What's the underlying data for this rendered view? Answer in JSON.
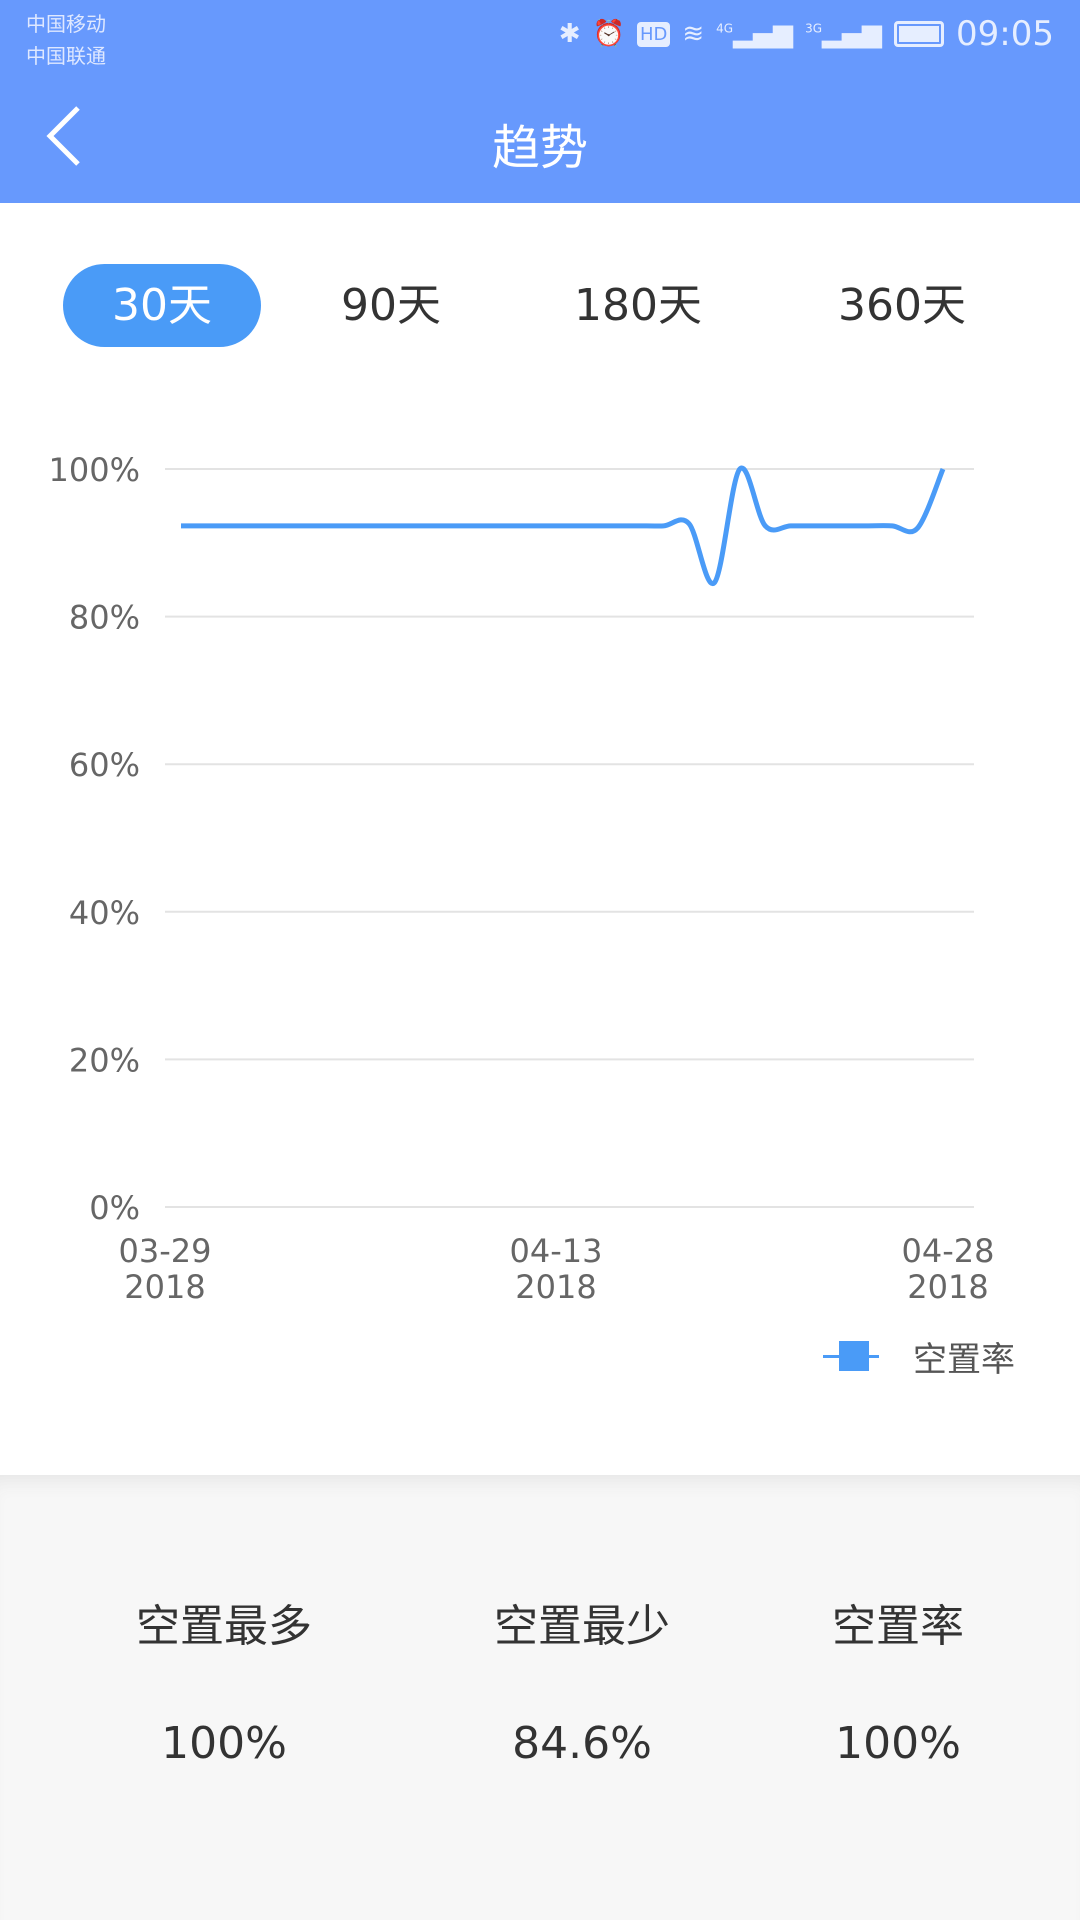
{
  "status_bar": {
    "carrier1": "中国移动",
    "carrier2": "中国联通",
    "network1": "4G",
    "network2": "3G",
    "hd": "HD",
    "time": "09:05"
  },
  "header": {
    "title": "趋势"
  },
  "tabs": [
    {
      "label": "30天",
      "active": true
    },
    {
      "label": "90天"
    },
    {
      "label": "180天"
    },
    {
      "label": "360天"
    }
  ],
  "colors": {
    "header": "#6799fd",
    "accent": "#4a9bf7"
  },
  "chart_data": {
    "type": "line",
    "x_tick_labels": [
      {
        "date": "03-29",
        "year": "2018"
      },
      {
        "date": "04-13",
        "year": "2018"
      },
      {
        "date": "04-28",
        "year": "2018"
      }
    ],
    "y_ticks": [
      "0%",
      "20%",
      "40%",
      "60%",
      "80%",
      "100%"
    ],
    "ylim": [
      0,
      100
    ],
    "grid": true,
    "legend_position": "bottom-right",
    "series": [
      {
        "name": "空置率",
        "color": "#4a9bf7",
        "values": [
          92.3,
          92.3,
          92.3,
          92.3,
          92.3,
          92.3,
          92.3,
          92.3,
          92.3,
          92.3,
          92.3,
          92.3,
          92.3,
          92.3,
          92.3,
          92.3,
          92.3,
          92.3,
          92.3,
          92.3,
          92.6,
          84.6,
          100,
          92.3,
          92.3,
          92.3,
          92.3,
          92.3,
          92.3,
          92.0,
          100
        ]
      }
    ]
  },
  "stats": [
    {
      "label": "空置最多",
      "value": "100%"
    },
    {
      "label": "空置最少",
      "value": "84.6%"
    },
    {
      "label": "空置率",
      "value": "100%"
    }
  ]
}
